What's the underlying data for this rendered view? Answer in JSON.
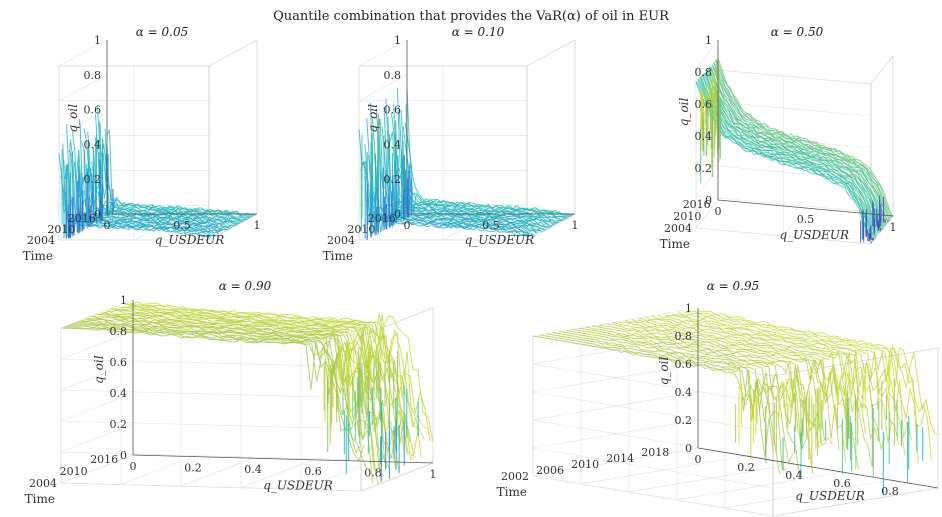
{
  "figure_title": "Quantile combination that provides the VaR(α) of oil in EUR",
  "chart_data": [
    {
      "type": "area",
      "title": "α = 0.05",
      "xlabel": "q_USDEUR",
      "ylabel": "q_oil",
      "zlabel": "Time",
      "x_ticks": [
        "0",
        "0.5",
        "1"
      ],
      "y_ticks": [
        "0",
        "0.2",
        "0.4",
        "0.6",
        "0.8",
        "1"
      ],
      "time_ticks": [
        "2016",
        "2010",
        "2004"
      ],
      "xlim": [
        0,
        1
      ],
      "ylim": [
        0,
        1
      ],
      "profile_x": [
        0.0,
        0.02,
        0.05,
        0.1,
        0.3,
        0.5,
        0.7,
        0.9,
        1.0
      ],
      "profile_y": [
        0.6,
        0.35,
        0.12,
        0.08,
        0.06,
        0.05,
        0.04,
        0.02,
        0.0
      ],
      "colormap": "parula"
    },
    {
      "type": "area",
      "title": "α = 0.10",
      "xlabel": "q_USDEUR",
      "ylabel": "q_oil",
      "zlabel": "Time",
      "x_ticks": [
        "0",
        "0.5",
        "1"
      ],
      "y_ticks": [
        "0",
        "0.2",
        "0.4",
        "0.6",
        "0.8",
        "1"
      ],
      "time_ticks": [
        "2016",
        "2010",
        "2004"
      ],
      "xlim": [
        0,
        1
      ],
      "ylim": [
        0,
        1
      ],
      "profile_x": [
        0.0,
        0.02,
        0.05,
        0.1,
        0.3,
        0.5,
        0.7,
        0.9,
        1.0
      ],
      "profile_y": [
        0.7,
        0.45,
        0.16,
        0.1,
        0.08,
        0.06,
        0.05,
        0.03,
        0.0
      ],
      "colormap": "parula"
    },
    {
      "type": "area",
      "title": "α = 0.50",
      "xlabel": "q_USDEUR",
      "ylabel": "q_oil",
      "zlabel": "Time",
      "x_ticks": [
        "0",
        "0.5",
        "1"
      ],
      "y_ticks": [
        "0",
        "0.2",
        "0.4",
        "0.6",
        "0.8",
        "1"
      ],
      "time_ticks": [
        "2016",
        "2010",
        "2004"
      ],
      "xlim": [
        0,
        1
      ],
      "ylim": [
        0,
        1
      ],
      "profile_x": [
        0.0,
        0.05,
        0.15,
        0.3,
        0.5,
        0.7,
        0.85,
        0.93,
        0.97,
        1.0
      ],
      "profile_y": [
        0.9,
        0.75,
        0.58,
        0.49,
        0.44,
        0.39,
        0.32,
        0.2,
        0.08,
        0.0
      ],
      "colormap": "parula"
    },
    {
      "type": "area",
      "title": "α = 0.90",
      "xlabel": "q_USDEUR",
      "ylabel": "q_oil",
      "zlabel": "Time",
      "x_ticks": [
        "0",
        "0.2",
        "0.4",
        "0.6",
        "0.8",
        "1"
      ],
      "y_ticks": [
        "0",
        "0.2",
        "0.4",
        "0.6",
        "0.8",
        "1"
      ],
      "time_ticks": [
        "2016",
        "2010",
        "2004"
      ],
      "xlim": [
        0,
        1
      ],
      "ylim": [
        0,
        1
      ],
      "profile_x": [
        0.0,
        0.2,
        0.4,
        0.6,
        0.8,
        0.85,
        0.9,
        0.95,
        1.0
      ],
      "profile_y": [
        1.0,
        0.97,
        0.95,
        0.93,
        0.92,
        0.9,
        0.85,
        0.5,
        0.3
      ],
      "colormap": "parula"
    },
    {
      "type": "area",
      "title": "α = 0.95",
      "xlabel": "q_USDEUR",
      "ylabel": "q_oil",
      "zlabel": "Time",
      "x_ticks": [
        "0",
        "0.2",
        "0.4",
        "0.6",
        "0.8"
      ],
      "y_ticks": [
        "0",
        "0.2",
        "0.4",
        "0.6",
        "0.8",
        "1"
      ],
      "time_ticks": [
        "2018",
        "2014",
        "2010",
        "2006",
        "2002"
      ],
      "xlim": [
        0,
        1
      ],
      "ylim": [
        0,
        1
      ],
      "profile_x": [
        0.0,
        0.2,
        0.4,
        0.6,
        0.8,
        0.9,
        0.95,
        1.0
      ],
      "profile_y": [
        1.0,
        0.99,
        0.98,
        0.97,
        0.96,
        0.93,
        0.8,
        0.5
      ],
      "colormap": "parula"
    }
  ]
}
